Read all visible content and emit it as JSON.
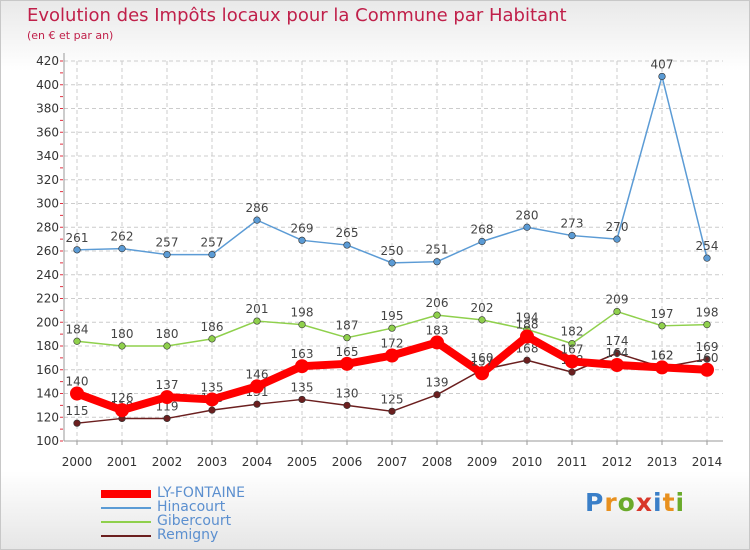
{
  "chart_data": {
    "type": "line",
    "title": "Evolution des Impôts locaux pour la Commune par Habitant",
    "subtitle": "(en € et par an)",
    "xlabel": "",
    "ylabel": "",
    "categories": [
      "2000",
      "2001",
      "2002",
      "2003",
      "2004",
      "2005",
      "2006",
      "2007",
      "2008",
      "2009",
      "2010",
      "2011",
      "2012",
      "2013",
      "2014"
    ],
    "ylim": [
      100,
      420
    ],
    "yticks": [
      100,
      120,
      140,
      160,
      180,
      200,
      220,
      240,
      260,
      280,
      300,
      320,
      340,
      360,
      380,
      400,
      420
    ],
    "grid": true,
    "legend_position": "bottom-left",
    "series": [
      {
        "name": "Remigny",
        "color": "#6b1f1f",
        "values": [
          115,
          119,
          119,
          126,
          131,
          135,
          130,
          125,
          139,
          160,
          168,
          158,
          174,
          162,
          169
        ]
      },
      {
        "name": "Gibercourt",
        "color": "#8fd04c",
        "values": [
          184,
          180,
          180,
          186,
          201,
          198,
          187,
          195,
          206,
          202,
          194,
          182,
          209,
          197,
          198
        ]
      },
      {
        "name": "Hinacourt",
        "color": "#5b9bd5",
        "values": [
          261,
          262,
          257,
          257,
          286,
          269,
          265,
          250,
          251,
          268,
          280,
          273,
          270,
          407,
          254
        ]
      },
      {
        "name": "LY-FONTAINE",
        "color": "#ff0000",
        "values": [
          140,
          126,
          137,
          135,
          146,
          163,
          165,
          172,
          183,
          157,
          188,
          167,
          164,
          162,
          160
        ]
      }
    ],
    "legend": [
      "LY-FONTAINE",
      "Hinacourt",
      "Gibercourt",
      "Remigny"
    ]
  },
  "logo": {
    "p": "P",
    "r": "r",
    "o": "o",
    "x": "x",
    "i1": "i",
    "t": "t",
    "i2": "i"
  }
}
